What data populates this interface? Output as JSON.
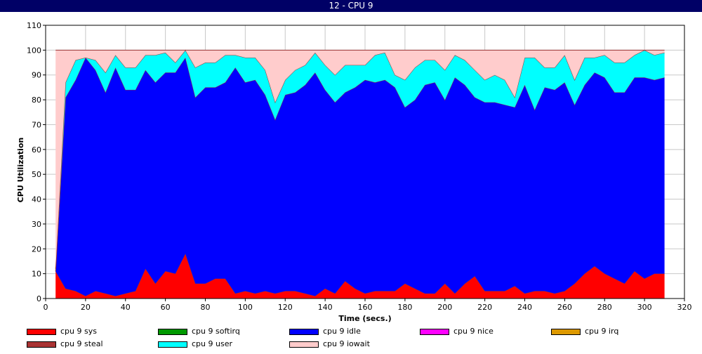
{
  "window": {
    "title": "12 - CPU 9"
  },
  "chart_data": {
    "type": "area",
    "stacked": true,
    "xlabel": "Time (secs.)",
    "ylabel": "CPU Utilization",
    "xlim": [
      0,
      320
    ],
    "ylim": [
      0,
      110
    ],
    "xticks": [
      0,
      20,
      40,
      60,
      80,
      100,
      120,
      140,
      160,
      180,
      200,
      220,
      240,
      260,
      280,
      300,
      320
    ],
    "yticks": [
      0,
      10,
      20,
      30,
      40,
      50,
      60,
      70,
      80,
      90,
      100,
      110
    ],
    "grid": true,
    "legend_position": "bottom",
    "x": [
      5,
      10,
      15,
      20,
      25,
      30,
      35,
      40,
      45,
      50,
      55,
      60,
      65,
      70,
      75,
      80,
      85,
      90,
      95,
      100,
      105,
      110,
      115,
      120,
      125,
      130,
      135,
      140,
      145,
      150,
      155,
      160,
      165,
      170,
      175,
      180,
      185,
      190,
      195,
      200,
      205,
      210,
      215,
      220,
      225,
      230,
      235,
      240,
      245,
      250,
      255,
      260,
      265,
      270,
      275,
      280,
      285,
      290,
      295,
      300,
      305,
      310
    ],
    "series": [
      {
        "name": "cpu 9 sys",
        "color": "#ff0000",
        "values": [
          11,
          4,
          3,
          1,
          3,
          2,
          1,
          2,
          3,
          12,
          6,
          11,
          10,
          18,
          6,
          6,
          8,
          8,
          2,
          3,
          2,
          3,
          2,
          3,
          3,
          2,
          1,
          4,
          2,
          7,
          4,
          2,
          3,
          3,
          3,
          6,
          4,
          2,
          2,
          6,
          2,
          6,
          9,
          3,
          3,
          3,
          5,
          2,
          3,
          3,
          2,
          3,
          6,
          10,
          13,
          10,
          8,
          6,
          11,
          8,
          10,
          10
        ]
      },
      {
        "name": "cpu 9 softirq",
        "color": "#009900",
        "values": [
          0,
          0,
          0,
          0,
          0,
          0,
          0,
          0,
          0,
          0,
          0,
          0,
          0,
          0,
          0,
          0,
          0,
          0,
          0,
          0,
          0,
          0,
          0,
          0,
          0,
          0,
          0,
          0,
          0,
          0,
          0,
          0,
          0,
          0,
          0,
          0,
          0,
          0,
          0,
          0,
          0,
          0,
          0,
          0,
          0,
          0,
          0,
          0,
          0,
          0,
          0,
          0,
          0,
          0,
          0,
          0,
          0,
          0,
          0,
          0,
          0,
          0
        ]
      },
      {
        "name": "cpu 9 idle",
        "color": "#0000ff",
        "values": [
          0,
          77,
          85,
          96,
          89,
          81,
          92,
          82,
          81,
          80,
          81,
          80,
          81,
          79,
          75,
          79,
          77,
          79,
          91,
          84,
          86,
          79,
          70,
          79,
          80,
          84,
          90,
          80,
          77,
          76,
          81,
          86,
          84,
          85,
          82,
          71,
          76,
          84,
          85,
          74,
          87,
          80,
          72,
          76,
          76,
          75,
          72,
          84,
          73,
          82,
          82,
          84,
          72,
          76,
          78,
          79,
          75,
          77,
          78,
          81,
          78,
          79
        ]
      },
      {
        "name": "cpu 9 nice",
        "color": "#ff00ff",
        "values": [
          0,
          0,
          0,
          0,
          0,
          0,
          0,
          0,
          0,
          0,
          0,
          0,
          0,
          0,
          0,
          0,
          0,
          0,
          0,
          0,
          0,
          0,
          0,
          0,
          0,
          0,
          0,
          0,
          0,
          0,
          0,
          0,
          0,
          0,
          0,
          0,
          0,
          0,
          0,
          0,
          0,
          0,
          0,
          0,
          0,
          0,
          0,
          0,
          0,
          0,
          0,
          0,
          0,
          0,
          0,
          0,
          0,
          0,
          0,
          0,
          0,
          0
        ]
      },
      {
        "name": "cpu 9 irq",
        "color": "#dd9900",
        "values": [
          0,
          0,
          0,
          0,
          0,
          0,
          0,
          0,
          0,
          0,
          0,
          0,
          0,
          0,
          0,
          0,
          0,
          0,
          0,
          0,
          0,
          0,
          0,
          0,
          0,
          0,
          0,
          0,
          0,
          0,
          0,
          0,
          0,
          0,
          0,
          0,
          0,
          0,
          0,
          0,
          0,
          0,
          0,
          0,
          0,
          0,
          0,
          0,
          0,
          0,
          0,
          0,
          0,
          0,
          0,
          0,
          0,
          0,
          0,
          0,
          0,
          0
        ]
      },
      {
        "name": "cpu 9 steal",
        "color": "#aa3333",
        "values": [
          0,
          0,
          0,
          0,
          0,
          0,
          0,
          0,
          0,
          0,
          0,
          0,
          0,
          0,
          0,
          0,
          0,
          0,
          0,
          0,
          0,
          0,
          0,
          0,
          0,
          0,
          0,
          0,
          0,
          0,
          0,
          0,
          0,
          0,
          0,
          0,
          0,
          0,
          0,
          0,
          0,
          0,
          0,
          0,
          0,
          0,
          0,
          0,
          0,
          0,
          0,
          0,
          0,
          0,
          0,
          0,
          0,
          0,
          0,
          0,
          0,
          0
        ]
      },
      {
        "name": "cpu 9 user",
        "color": "#00ffff",
        "values": [
          1,
          6,
          8,
          0,
          4,
          8,
          5,
          9,
          9,
          6,
          11,
          8,
          4,
          3,
          12,
          10,
          10,
          11,
          5,
          10,
          9,
          10,
          7,
          6,
          9,
          8,
          8,
          10,
          11,
          11,
          9,
          6,
          11,
          11,
          5,
          11,
          13,
          10,
          9,
          12,
          9,
          10,
          11,
          9,
          11,
          10,
          4,
          11,
          21,
          8,
          9,
          11,
          10,
          11,
          6,
          9,
          12,
          12,
          9,
          11,
          10,
          10
        ]
      },
      {
        "name": "cpu 9 iowait",
        "color": "#ffcccc",
        "values": [
          88,
          13,
          4,
          3,
          4,
          9,
          2,
          7,
          7,
          2,
          2,
          1,
          5,
          0,
          7,
          5,
          5,
          2,
          2,
          3,
          3,
          8,
          21,
          12,
          8,
          6,
          1,
          6,
          10,
          6,
          6,
          6,
          2,
          1,
          10,
          12,
          7,
          4,
          4,
          8,
          2,
          4,
          8,
          12,
          10,
          12,
          19,
          3,
          3,
          7,
          7,
          2,
          12,
          3,
          3,
          2,
          5,
          5,
          2,
          0,
          2,
          1
        ]
      }
    ]
  }
}
